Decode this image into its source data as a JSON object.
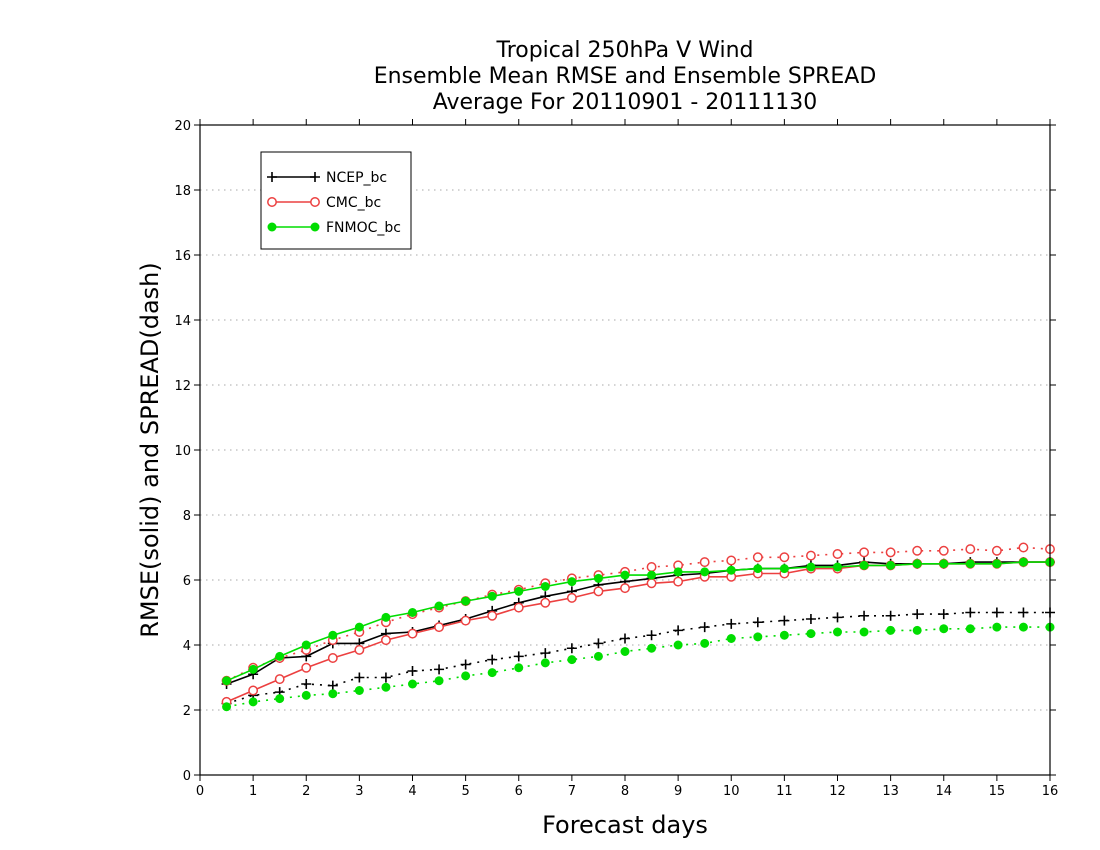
{
  "chart_data": {
    "type": "line",
    "title": [
      "Tropical 250hPa V Wind",
      "Ensemble Mean RMSE and Ensemble SPREAD",
      "Average For 20110901 - 20111130"
    ],
    "xlabel": "Forecast days",
    "ylabel": "RMSE(solid) and SPREAD(dash)",
    "xlim": [
      0,
      16
    ],
    "ylim": [
      0,
      20
    ],
    "x_ticks": [
      "0",
      "1",
      "2",
      "3",
      "4",
      "5",
      "6",
      "7",
      "8",
      "9",
      "10",
      "11",
      "12",
      "13",
      "14",
      "15",
      "16"
    ],
    "y_ticks": [
      "0",
      "2",
      "4",
      "6",
      "8",
      "10",
      "12",
      "14",
      "16",
      "18",
      "20"
    ],
    "grid": "horizontal dotted",
    "legend_position": "top-left",
    "x": [
      0.5,
      1,
      1.5,
      2,
      2.5,
      3,
      3.5,
      4,
      4.5,
      5,
      5.5,
      6,
      6.5,
      7,
      7.5,
      8,
      8.5,
      9,
      9.5,
      10,
      10.5,
      11,
      11.5,
      12,
      12.5,
      13,
      13.5,
      14,
      14.5,
      15,
      15.5,
      16
    ],
    "series": [
      {
        "name": "NCEP_bc",
        "color": "#000000",
        "marker": "plus",
        "rmse": [
          2.8,
          3.1,
          3.6,
          3.65,
          4.05,
          4.05,
          4.35,
          4.4,
          4.6,
          4.8,
          5.05,
          5.3,
          5.5,
          5.65,
          5.85,
          5.95,
          6.05,
          6.15,
          6.2,
          6.3,
          6.35,
          6.35,
          6.45,
          6.45,
          6.55,
          6.5,
          6.5,
          6.5,
          6.55,
          6.55,
          6.55,
          6.55
        ],
        "spread": [
          2.2,
          2.45,
          2.55,
          2.8,
          2.75,
          3.0,
          3.0,
          3.2,
          3.25,
          3.4,
          3.55,
          3.65,
          3.75,
          3.9,
          4.05,
          4.2,
          4.3,
          4.45,
          4.55,
          4.65,
          4.7,
          4.75,
          4.8,
          4.85,
          4.9,
          4.9,
          4.95,
          4.95,
          5.0,
          5.0,
          5.0,
          5.0
        ]
      },
      {
        "name": "CMC_bc",
        "color": "#ec4040",
        "marker": "open-circle",
        "rmse": [
          2.25,
          2.6,
          2.95,
          3.3,
          3.6,
          3.85,
          4.15,
          4.35,
          4.55,
          4.75,
          4.9,
          5.15,
          5.3,
          5.45,
          5.65,
          5.75,
          5.9,
          5.95,
          6.1,
          6.1,
          6.2,
          6.2,
          6.35,
          6.35,
          6.45,
          6.45,
          6.5,
          6.5,
          6.5,
          6.5,
          6.55,
          6.55
        ],
        "spread": [
          2.9,
          3.3,
          3.6,
          3.85,
          4.15,
          4.4,
          4.7,
          4.95,
          5.15,
          5.35,
          5.55,
          5.7,
          5.9,
          6.05,
          6.15,
          6.25,
          6.4,
          6.45,
          6.55,
          6.6,
          6.7,
          6.7,
          6.75,
          6.8,
          6.85,
          6.85,
          6.9,
          6.9,
          6.95,
          6.9,
          7.0,
          6.95
        ]
      },
      {
        "name": "FNMOC_bc",
        "color": "#00dd00",
        "marker": "filled-circle",
        "rmse": [
          2.9,
          3.25,
          3.65,
          4.0,
          4.3,
          4.55,
          4.85,
          5.0,
          5.2,
          5.35,
          5.5,
          5.65,
          5.8,
          5.95,
          6.05,
          6.15,
          6.15,
          6.25,
          6.25,
          6.3,
          6.35,
          6.35,
          6.4,
          6.4,
          6.45,
          6.45,
          6.5,
          6.5,
          6.5,
          6.5,
          6.55,
          6.55
        ],
        "spread": [
          2.1,
          2.25,
          2.35,
          2.45,
          2.5,
          2.6,
          2.7,
          2.8,
          2.9,
          3.05,
          3.15,
          3.3,
          3.45,
          3.55,
          3.65,
          3.8,
          3.9,
          4.0,
          4.05,
          4.2,
          4.25,
          4.3,
          4.35,
          4.4,
          4.4,
          4.45,
          4.45,
          4.5,
          4.5,
          4.55,
          4.55,
          4.55
        ]
      }
    ]
  }
}
